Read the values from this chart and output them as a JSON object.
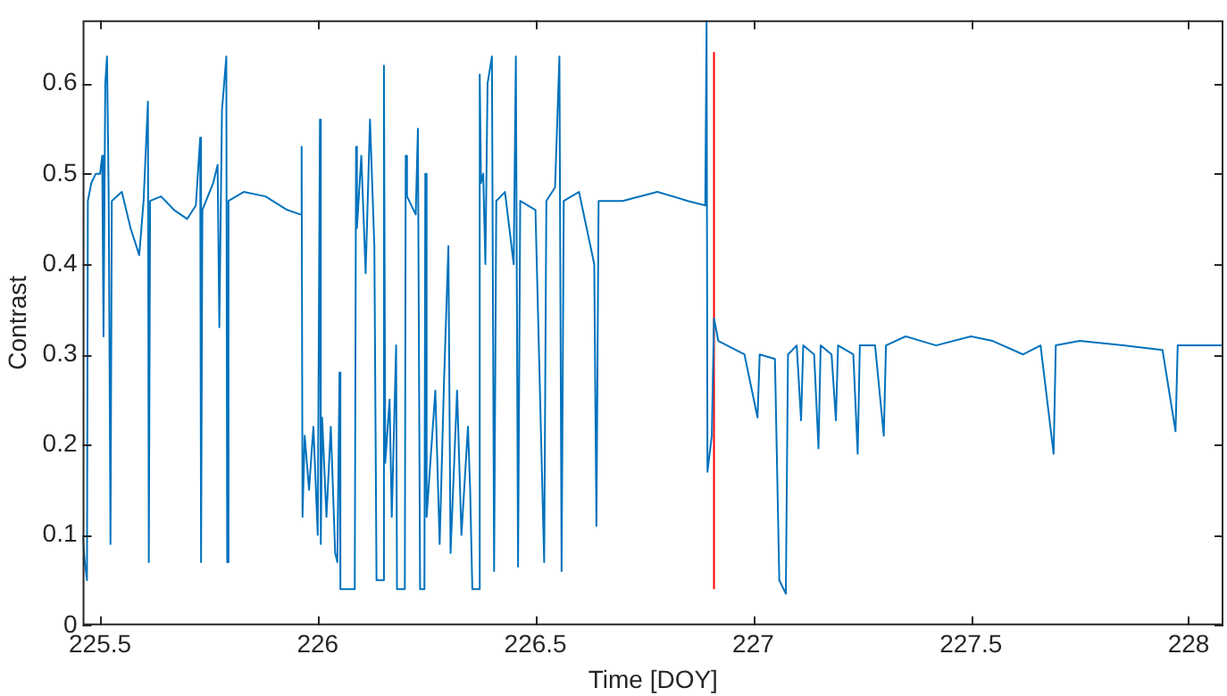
{
  "chart_data": {
    "type": "line",
    "xlabel": "Time [DOY]",
    "ylabel": "Contrast",
    "xlim": [
      225.46,
      228.08
    ],
    "ylim": [
      0,
      0.67
    ],
    "xticks": [
      225.5,
      226,
      226.5,
      227,
      227.5,
      228
    ],
    "yticks": [
      0,
      0.1,
      0.2,
      0.3,
      0.4,
      0.5,
      0.6
    ],
    "grid": false,
    "legend": false,
    "marker": "none",
    "series": [
      {
        "color": "#0072bd",
        "x": [
          225.46,
          225.465,
          225.47,
          225.472,
          225.48,
          225.49,
          225.5,
          225.505,
          225.508,
          225.512,
          225.516,
          225.52,
          225.524,
          225.527,
          225.55,
          225.57,
          225.59,
          225.6,
          225.61,
          225.612,
          225.615,
          225.64,
          225.67,
          225.7,
          225.72,
          225.73,
          225.732,
          225.735,
          225.76,
          225.77,
          225.774,
          225.78,
          225.79,
          225.792,
          225.795,
          225.83,
          225.88,
          225.93,
          225.96,
          225.963,
          225.965,
          225.97,
          225.98,
          225.99,
          226,
          226.005,
          226.007,
          226.01,
          226.02,
          226.03,
          226.04,
          226.045,
          226.05,
          226.052,
          226.085,
          226.088,
          226.09,
          226.1,
          226.11,
          226.12,
          226.13,
          226.135,
          226.15,
          226.152,
          226.155,
          226.165,
          226.17,
          226.18,
          226.182,
          226.2,
          226.202,
          226.205,
          226.225,
          226.23,
          226.235,
          226.245,
          226.247,
          226.25,
          226.27,
          226.28,
          226.29,
          226.3,
          226.305,
          226.32,
          226.33,
          226.345,
          226.35,
          226.355,
          226.37,
          226.372,
          226.375,
          226.38,
          226.385,
          226.39,
          226.4,
          226.405,
          226.41,
          226.43,
          226.45,
          226.455,
          226.46,
          226.465,
          226.5,
          226.52,
          226.525,
          226.545,
          226.555,
          226.56,
          226.565,
          226.6,
          226.635,
          226.64,
          226.645,
          226.7,
          226.78,
          226.85,
          226.89,
          226.893,
          226.895,
          226.905,
          226.91,
          226.92,
          226.98,
          227.01,
          227.015,
          227.05,
          227.06,
          227.075,
          227.08,
          227.1,
          227.11,
          227.115,
          227.14,
          227.15,
          227.155,
          227.18,
          227.19,
          227.195,
          227.23,
          227.24,
          227.245,
          227.28,
          227.3,
          227.305,
          227.35,
          227.42,
          227.5,
          227.55,
          227.62,
          227.66,
          227.69,
          227.695,
          227.75,
          227.85,
          227.94,
          227.97,
          227.975,
          228.08
        ],
        "values": [
          0.1,
          0.07,
          0.05,
          0.47,
          0.49,
          0.5,
          0.5,
          0.52,
          0.32,
          0.6,
          0.63,
          0.47,
          0.09,
          0.47,
          0.48,
          0.44,
          0.41,
          0.47,
          0.58,
          0.07,
          0.47,
          0.475,
          0.46,
          0.45,
          0.465,
          0.54,
          0.07,
          0.46,
          0.49,
          0.51,
          0.33,
          0.57,
          0.63,
          0.07,
          0.47,
          0.48,
          0.475,
          0.46,
          0.455,
          0.53,
          0.12,
          0.21,
          0.15,
          0.22,
          0.1,
          0.56,
          0.09,
          0.23,
          0.12,
          0.22,
          0.08,
          0.07,
          0.28,
          0.04,
          0.04,
          0.53,
          0.44,
          0.52,
          0.39,
          0.56,
          0.42,
          0.05,
          0.05,
          0.62,
          0.18,
          0.25,
          0.12,
          0.31,
          0.04,
          0.04,
          0.52,
          0.475,
          0.455,
          0.55,
          0.04,
          0.04,
          0.5,
          0.12,
          0.26,
          0.09,
          0.27,
          0.42,
          0.08,
          0.26,
          0.1,
          0.22,
          0.15,
          0.04,
          0.04,
          0.61,
          0.49,
          0.5,
          0.4,
          0.6,
          0.63,
          0.06,
          0.47,
          0.48,
          0.4,
          0.63,
          0.065,
          0.47,
          0.46,
          0.07,
          0.47,
          0.485,
          0.63,
          0.06,
          0.47,
          0.48,
          0.4,
          0.11,
          0.47,
          0.47,
          0.48,
          0.47,
          0.465,
          0.67,
          0.17,
          0.21,
          0.34,
          0.315,
          0.3,
          0.23,
          0.3,
          0.295,
          0.05,
          0.035,
          0.3,
          0.31,
          0.227,
          0.31,
          0.3,
          0.196,
          0.31,
          0.3,
          0.227,
          0.31,
          0.3,
          0.19,
          0.31,
          0.31,
          0.21,
          0.31,
          0.32,
          0.31,
          0.32,
          0.315,
          0.3,
          0.31,
          0.19,
          0.31,
          0.315,
          0.31,
          0.305,
          0.215,
          0.31,
          0.31
        ]
      },
      {
        "color": "#ff0000",
        "x": [
          226.91,
          226.91
        ],
        "values": [
          0.04,
          0.635
        ]
      }
    ]
  }
}
